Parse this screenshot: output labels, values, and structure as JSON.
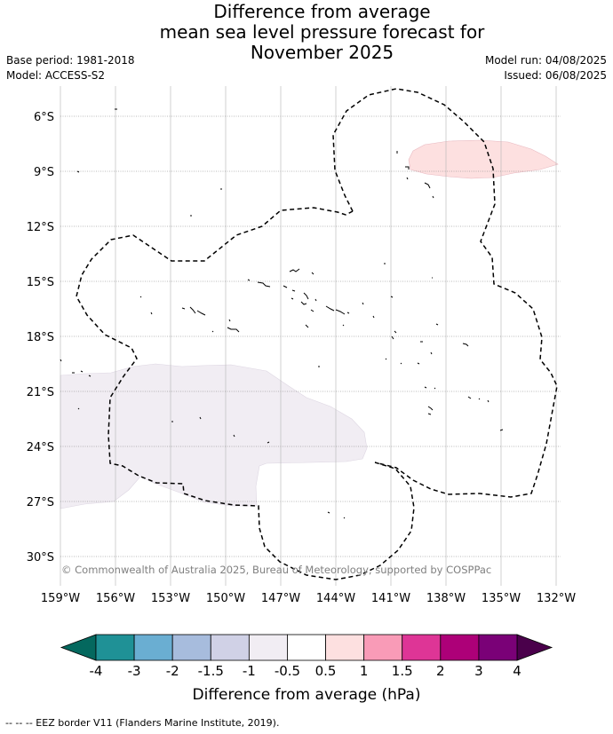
{
  "title": {
    "line1": "Difference from average",
    "line2": "mean sea level pressure forecast for",
    "line3": "November 2025"
  },
  "meta": {
    "base_period": "Base period: 1981-2018",
    "model": "Model: ACCESS-S2",
    "model_run": "Model run: 04/08/2025",
    "issued": "Issued: 06/08/2025"
  },
  "map": {
    "lat_labels": [
      "6°S",
      "9°S",
      "12°S",
      "15°S",
      "18°S",
      "21°S",
      "24°S",
      "27°S",
      "30°S"
    ],
    "lon_labels": [
      "159°W",
      "156°W",
      "153°W",
      "150°W",
      "147°W",
      "144°W",
      "141°W",
      "138°W",
      "135°W",
      "132°W"
    ],
    "copyright": "© Commonwealth of Australia 2025, Bureau of Meteorology, supported by COSPPac",
    "colors": {
      "positive_anomaly": "#fde0e0",
      "negative_anomaly": "#f1edf3"
    }
  },
  "colorbar": {
    "label": "Difference from average (hPa)",
    "ticks": [
      "-4",
      "-3",
      "-2",
      "-1.5",
      "-1",
      "-0.5",
      "0.5",
      "1",
      "1.5",
      "2",
      "3",
      "4"
    ],
    "colors": [
      "#1f9196",
      "#6aaed2",
      "#a7bcdd",
      "#d0d1e6",
      "#f1edf3",
      "#ffffff",
      "#fde0e0",
      "#f99bb7",
      "#de3596",
      "#ad0078",
      "#7a0177"
    ],
    "under_color": "#04685e",
    "over_color": "#4a004b"
  },
  "footer": {
    "legend": "--  --  -- EEZ border V11 (Flanders Marine Institute, 2019)."
  }
}
